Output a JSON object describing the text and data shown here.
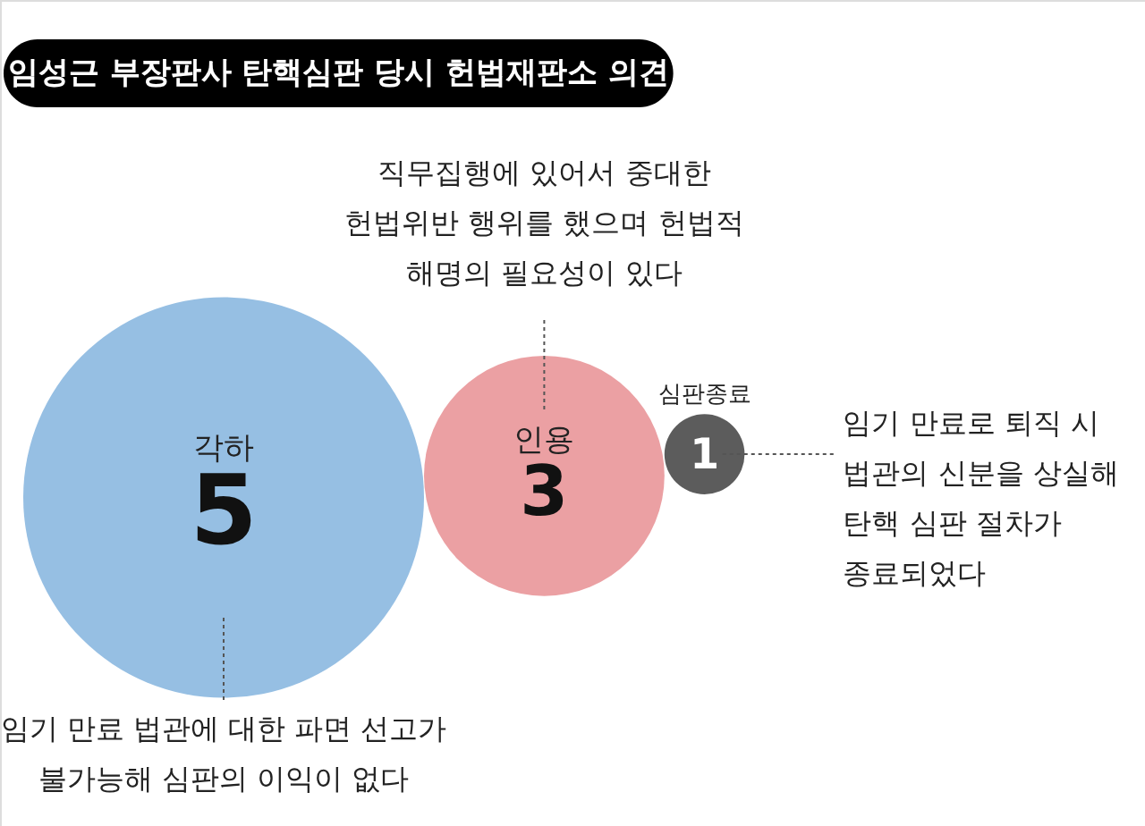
{
  "chart_data": {
    "type": "other",
    "title": "임성근 부장판사 탄핵심판 당시 헌법재판소 의견",
    "categories": [
      "각하",
      "인용",
      "심판종료"
    ],
    "values": [
      5,
      3,
      1
    ],
    "colors": [
      "#96bfe3",
      "#eba0a3",
      "#5c5c5c"
    ],
    "data_labels": true,
    "annotations": [
      "임기 만료 법관에 대한 파면 선고가\n불가능해 심판의 이익이 없다",
      "직무집행에 있어서 중대한\n헌법위반 행위를 했으며 헌법적\n해명의 필요성이 있다",
      "임기 만료로 퇴직 시\n법관의 신분을 상실해\n탄핵 심판 절차가\n종료되었다"
    ]
  }
}
